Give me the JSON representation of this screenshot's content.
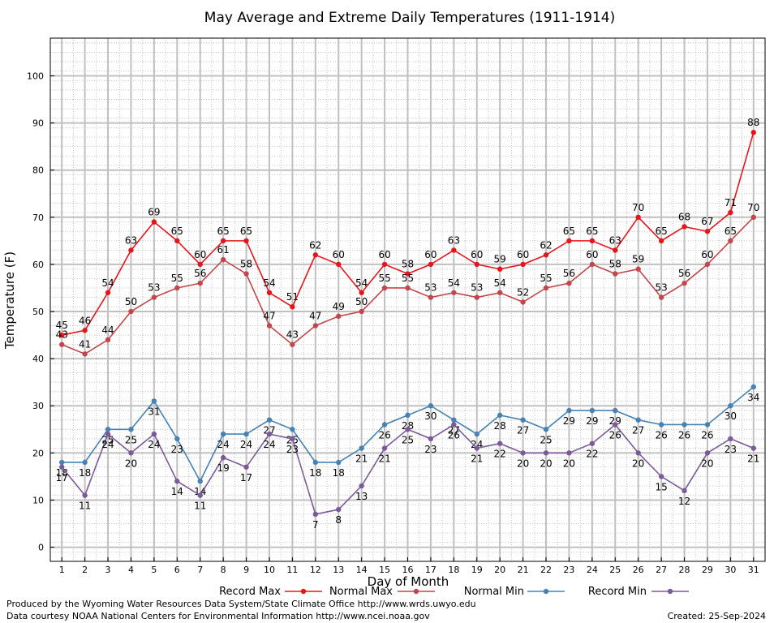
{
  "chart_data": {
    "type": "line",
    "title": "May Average and Extreme Daily Temperatures (1911-1914)",
    "xlabel": "Day of Month",
    "ylabel": "Temperature (F)",
    "x": [
      1,
      2,
      3,
      4,
      5,
      6,
      7,
      8,
      9,
      10,
      11,
      12,
      13,
      14,
      15,
      16,
      17,
      18,
      19,
      20,
      21,
      22,
      23,
      24,
      25,
      26,
      27,
      28,
      29,
      30,
      31
    ],
    "xlim": [
      0.5,
      31.5
    ],
    "ylim": [
      -3,
      108
    ],
    "yticks": [
      0,
      10,
      20,
      30,
      40,
      50,
      60,
      70,
      80,
      90,
      100
    ],
    "grid": true,
    "legend_position": "bottom",
    "series": [
      {
        "name": "Record Max",
        "color": "#e8141c",
        "label_position": "above",
        "values": [
          45,
          46,
          54,
          63,
          69,
          65,
          60,
          65,
          65,
          54,
          51,
          62,
          60,
          54,
          60,
          58,
          60,
          63,
          60,
          59,
          60,
          62,
          65,
          65,
          63,
          70,
          65,
          68,
          67,
          71,
          88
        ]
      },
      {
        "name": "Normal Max",
        "color": "#c2464b",
        "label_position": "above",
        "values": [
          43,
          41,
          44,
          50,
          53,
          55,
          56,
          61,
          58,
          47,
          43,
          47,
          49,
          50,
          55,
          55,
          53,
          54,
          53,
          54,
          52,
          55,
          56,
          60,
          58,
          59,
          53,
          56,
          60,
          65,
          70
        ]
      },
      {
        "name": "Normal Min",
        "color": "#4682b4",
        "label_position": "below",
        "values": [
          18,
          18,
          25,
          25,
          31,
          23,
          14,
          24,
          24,
          27,
          25,
          18,
          18,
          21,
          26,
          28,
          30,
          27,
          24,
          28,
          27,
          25,
          29,
          29,
          29,
          27,
          26,
          26,
          26,
          30,
          34
        ]
      },
      {
        "name": "Record Min",
        "color": "#7b5a9a",
        "label_position": "below",
        "values": [
          17,
          11,
          24,
          20,
          24,
          14,
          11,
          19,
          17,
          24,
          23,
          7,
          8,
          13,
          21,
          25,
          23,
          26,
          21,
          22,
          20,
          20,
          20,
          22,
          26,
          20,
          15,
          12,
          20,
          23,
          21
        ]
      }
    ]
  },
  "footer": {
    "produced_by": "Produced by the Wyoming Water Resources Data System/State Climate Office http://www.wrds.uwyo.edu",
    "courtesy": "Data courtesy NOAA National Centers for Environmental Information http://www.ncei.noaa.gov",
    "created": "Created:  25-Sep-2024"
  }
}
